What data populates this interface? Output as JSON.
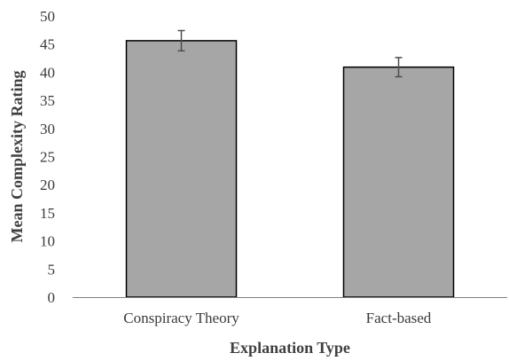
{
  "chart_data": {
    "type": "bar",
    "categories": [
      "Conspiracy Theory",
      "Fact-based"
    ],
    "values": [
      45.6,
      40.9
    ],
    "error": [
      1.8,
      1.7
    ],
    "title": "",
    "xlabel": "Explanation Type",
    "ylabel": "Mean Complexity Rating",
    "ylim": [
      0,
      50
    ],
    "yticks": [
      0,
      5,
      10,
      15,
      20,
      25,
      30,
      35,
      40,
      45,
      50
    ],
    "grid": false,
    "legend": "none",
    "colors": {
      "bar_fill": "#a6a6a6",
      "bar_stroke": "#000000",
      "axis": "#808080",
      "error_bar": "#4d4d4d"
    }
  }
}
